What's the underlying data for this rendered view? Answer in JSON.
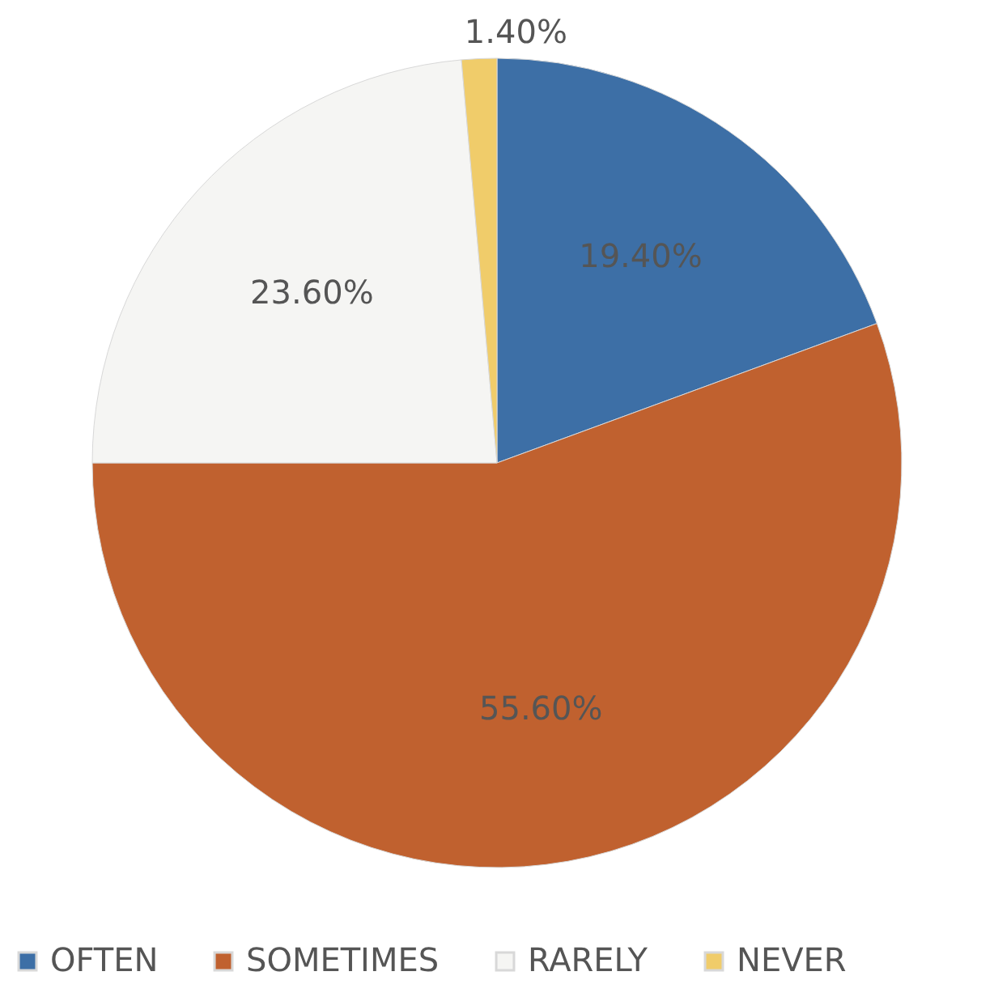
{
  "chart_data": {
    "type": "pie",
    "categories": [
      "OFTEN",
      "SOMETIMES",
      "RARELY",
      "NEVER"
    ],
    "values": [
      19.4,
      55.6,
      23.6,
      1.4
    ],
    "colors": [
      "#3d6fa6",
      "#c0612f",
      "#f5f5f3",
      "#f0cc6a"
    ],
    "value_labels": [
      "19.40%",
      "55.60%",
      "23.60%",
      "1.40%"
    ],
    "legend": "bottom"
  }
}
